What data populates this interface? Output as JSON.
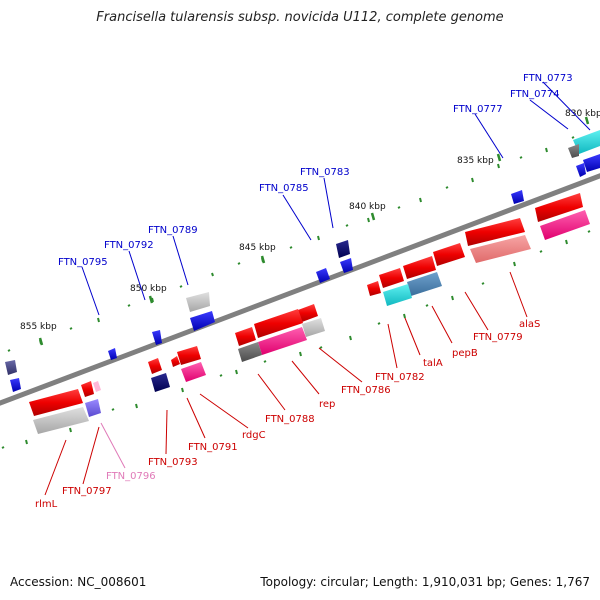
{
  "title": "Francisella tularensis subsp. novicida U112, complete genome",
  "footer": {
    "accession": "Accession: NC_008601",
    "summary": "Topology: circular; Length: 1,910,031 bp; Genes: 1,767"
  },
  "ticks": [
    "830 kbp",
    "835 kbp",
    "840 kbp",
    "845 kbp",
    "850 kbp",
    "855 kbp"
  ],
  "labels_upper": [
    "FTN_0773",
    "FTN_0774",
    "FTN_0777",
    "FTN_0783",
    "FTN_0785",
    "FTN_0789",
    "FTN_0792",
    "FTN_0795"
  ],
  "labels_lower": [
    "alaS",
    "FTN_0779",
    "pepB",
    "talA",
    "FTN_0782",
    "FTN_0786",
    "rep",
    "FTN_0788",
    "rdgC",
    "FTN_0791",
    "FTN_0793",
    "FTN_0796",
    "FTN_0797",
    "rlmL"
  ],
  "colors": {
    "forward_label": "#0000cc",
    "reverse_label": "#cc0000",
    "pale_label": "#e07ab8",
    "backbone": "#808080",
    "tick": "#2e8b2e"
  }
}
